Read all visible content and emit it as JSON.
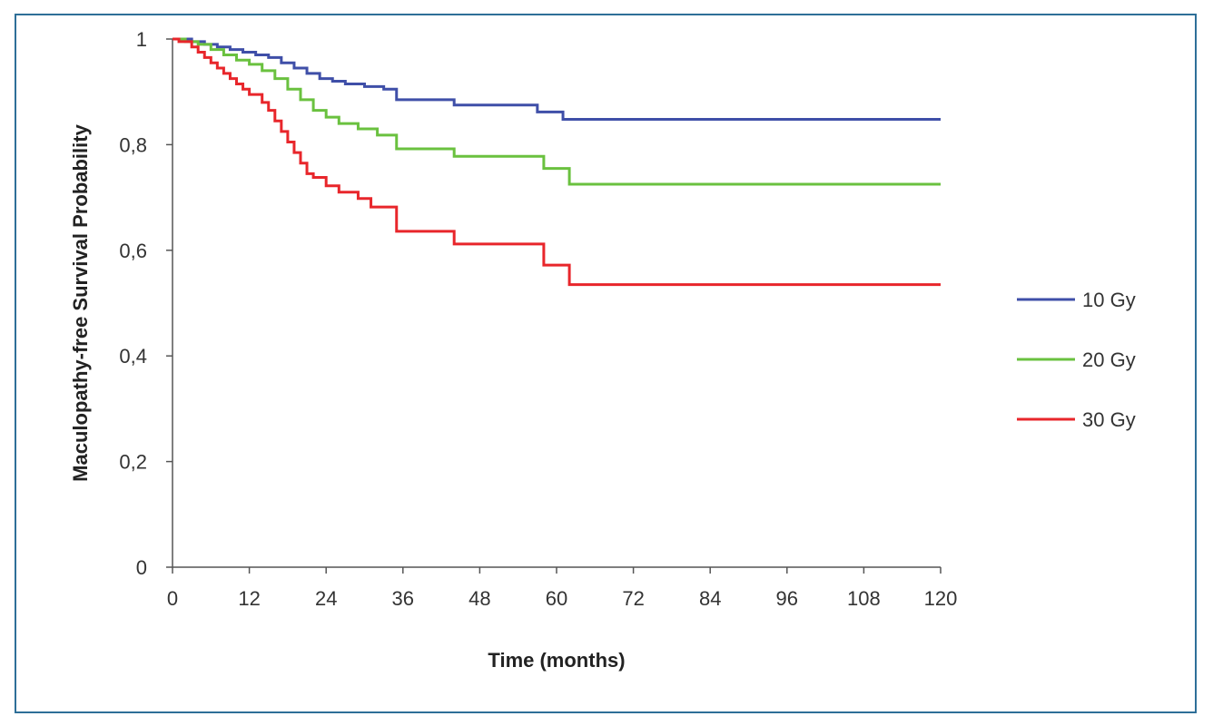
{
  "chart_data": {
    "type": "line",
    "step": true,
    "xlabel": "Time (months)",
    "ylabel": "Maculopathy-free  Survival  Probability",
    "xlim": [
      0,
      120
    ],
    "ylim": [
      0,
      1
    ],
    "x_ticks": [
      0,
      12,
      24,
      36,
      48,
      60,
      72,
      84,
      96,
      108,
      120
    ],
    "x_tick_labels": [
      "0",
      "12",
      "24",
      "36",
      "48",
      "60",
      "72",
      "84",
      "96",
      "108",
      "120"
    ],
    "y_ticks": [
      0,
      0.2,
      0.4,
      0.6,
      0.8,
      1
    ],
    "y_tick_labels": [
      "0",
      "0,2",
      "0,4",
      "0,6",
      "0,8",
      "1"
    ],
    "grid": false,
    "legend_position": "right",
    "series": [
      {
        "name": "10 Gy",
        "color": "#3f4fa8",
        "x": [
          0,
          3,
          5,
          7,
          9,
          11,
          13,
          15,
          17,
          19,
          21,
          23,
          25,
          27,
          30,
          33,
          35,
          44,
          57,
          61,
          120
        ],
        "y": [
          1,
          0.995,
          0.99,
          0.985,
          0.98,
          0.975,
          0.97,
          0.965,
          0.955,
          0.945,
          0.935,
          0.925,
          0.92,
          0.915,
          0.91,
          0.905,
          0.885,
          0.875,
          0.862,
          0.848,
          0.848
        ]
      },
      {
        "name": "20 Gy",
        "color": "#6ac13f",
        "x": [
          0,
          2,
          4,
          6,
          8,
          10,
          12,
          14,
          16,
          18,
          20,
          22,
          24,
          26,
          29,
          32,
          35,
          44,
          58,
          62,
          120
        ],
        "y": [
          1,
          0.995,
          0.99,
          0.98,
          0.97,
          0.96,
          0.952,
          0.94,
          0.925,
          0.905,
          0.885,
          0.865,
          0.852,
          0.84,
          0.83,
          0.818,
          0.792,
          0.778,
          0.755,
          0.725,
          0.725
        ]
      },
      {
        "name": "30 Gy",
        "color": "#e8262b",
        "x": [
          0,
          1,
          3,
          4,
          5,
          6,
          7,
          8,
          9,
          10,
          11,
          12,
          14,
          15,
          16,
          17,
          18,
          19,
          20,
          21,
          22,
          24,
          26,
          29,
          31,
          35,
          44,
          58,
          62,
          120
        ],
        "y": [
          1,
          0.995,
          0.985,
          0.975,
          0.965,
          0.955,
          0.945,
          0.935,
          0.925,
          0.915,
          0.905,
          0.895,
          0.88,
          0.865,
          0.845,
          0.825,
          0.805,
          0.785,
          0.765,
          0.745,
          0.738,
          0.722,
          0.71,
          0.698,
          0.682,
          0.636,
          0.612,
          0.572,
          0.535,
          0.535
        ]
      }
    ]
  }
}
